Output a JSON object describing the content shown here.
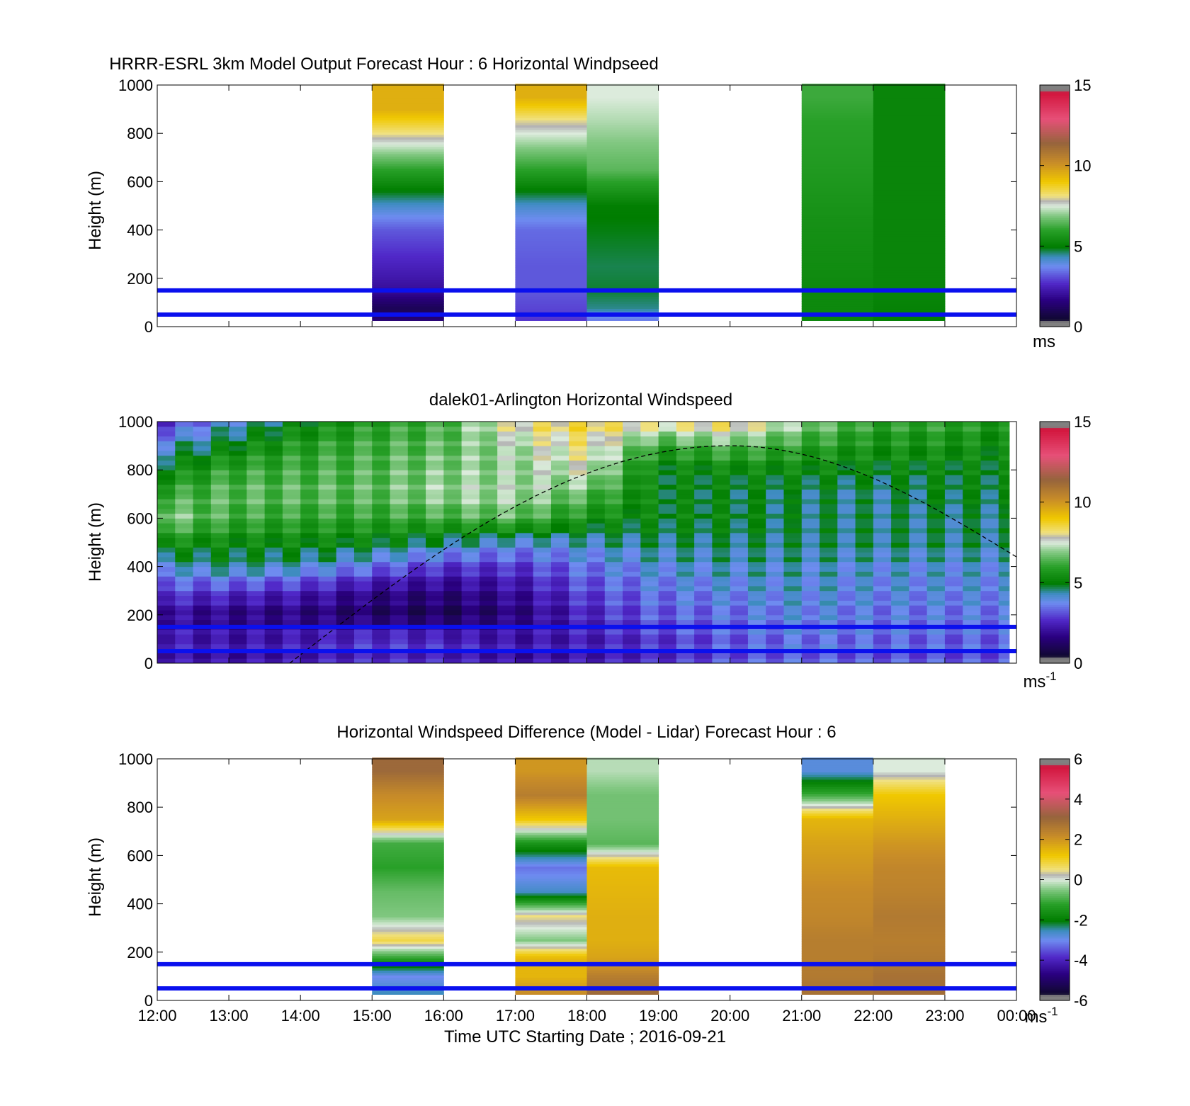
{
  "figure": {
    "xlabel": "Time UTC  Starting Date ; 2016-09-21",
    "xtick_labels": [
      "12:00",
      "13:00",
      "14:00",
      "15:00",
      "16:00",
      "17:00",
      "18:00",
      "19:00",
      "20:00",
      "21:00",
      "22:00",
      "23:00",
      "00:00"
    ]
  },
  "chart_data": [
    {
      "type": "heatmap",
      "title": "HRRR-ESRL 3km Model Output   Forecast Hour : 6 Horizontal Windpseed",
      "ylabel": "Height (m)",
      "x_unit": "hours UTC",
      "xlim": [
        12,
        24
      ],
      "ylim": [
        0,
        1000
      ],
      "yticks": [
        0,
        200,
        400,
        600,
        800,
        1000
      ],
      "colorbar": {
        "ticks": [
          0,
          5,
          10,
          15
        ],
        "range": [
          0,
          15
        ],
        "unit": "ms",
        "unit_sup": ""
      },
      "reference_lines_m": [
        50,
        150
      ],
      "line_color": "#0a10ee",
      "columns": [
        {
          "start": 15,
          "end": 16,
          "heights": [
            25,
            75,
            150,
            250,
            400,
            500,
            650,
            900
          ],
          "values": [
            1.5,
            1.0,
            2.0,
            2.5,
            3.2,
            4.2,
            6.0,
            9.5
          ]
        },
        {
          "start": 17,
          "end": 18,
          "heights": [
            25,
            75,
            150,
            250,
            400,
            500,
            650,
            850,
            950
          ],
          "values": [
            2.8,
            3.0,
            3.2,
            3.2,
            3.4,
            4.2,
            6.0,
            8.0,
            9.5
          ]
        },
        {
          "start": 18,
          "end": 19,
          "heights": [
            25,
            75,
            150,
            250,
            400,
            500,
            650,
            850,
            950
          ],
          "values": [
            3.5,
            4.5,
            4.8,
            4.7,
            4.9,
            5.0,
            6.5,
            7.2,
            7.5
          ]
        },
        {
          "start": 21,
          "end": 22,
          "heights": [
            25,
            75,
            150,
            250,
            400,
            500,
            650,
            850,
            950
          ],
          "values": [
            5.2,
            5.3,
            5.3,
            5.4,
            5.5,
            5.6,
            5.8,
            6.0,
            6.2
          ]
        },
        {
          "start": 22,
          "end": 23,
          "heights": [
            25,
            75,
            150,
            250,
            400,
            500,
            650,
            850,
            950
          ],
          "values": [
            5.0,
            5.1,
            5.2,
            5.2,
            5.2,
            5.2,
            5.2,
            5.2,
            5.2
          ]
        }
      ]
    },
    {
      "type": "heatmap",
      "title": "dalek01-Arlington  Horizontal Windspeed",
      "ylabel": "Height (m)",
      "x_unit": "hours UTC",
      "xlim": [
        12,
        24
      ],
      "ylim": [
        0,
        1000
      ],
      "yticks": [
        0,
        200,
        400,
        600,
        800,
        1000
      ],
      "colorbar": {
        "ticks": [
          0,
          5,
          10,
          15
        ],
        "range": [
          0,
          15
        ],
        "unit": "ms",
        "unit_sup": "-1"
      },
      "reference_lines_m": [
        50,
        150
      ],
      "line_color": "#0a10ee",
      "data_end_hour": 23.9,
      "column_width_h": 0.25,
      "profile_heights": [
        0,
        100,
        200,
        300,
        400,
        500,
        600,
        700,
        800,
        900,
        1000
      ],
      "profile_times": [
        12,
        13,
        14,
        15,
        16,
        17,
        18,
        19,
        20,
        21,
        22,
        23,
        24
      ],
      "profiles": [
        [
          2.2,
          2.5,
          2.0,
          3.0,
          4.0,
          5.5,
          7.0,
          6.0,
          5.0,
          4.0,
          2.5
        ],
        [
          2.0,
          2.2,
          1.6,
          2.8,
          4.5,
          5.2,
          6.2,
          6.5,
          6.0,
          5.0,
          4.0
        ],
        [
          2.2,
          2.4,
          1.5,
          2.5,
          4.2,
          5.2,
          6.0,
          6.5,
          6.2,
          5.8,
          5.0
        ],
        [
          2.5,
          2.8,
          1.2,
          1.8,
          3.5,
          5.0,
          6.0,
          6.5,
          6.4,
          6.2,
          5.8
        ],
        [
          2.4,
          2.6,
          1.0,
          1.6,
          2.8,
          4.5,
          6.2,
          7.0,
          6.8,
          6.5,
          6.2
        ],
        [
          2.0,
          2.2,
          1.5,
          2.0,
          2.8,
          4.0,
          6.5,
          7.2,
          7.0,
          7.2,
          8.0
        ],
        [
          2.2,
          2.4,
          2.5,
          3.0,
          3.5,
          4.2,
          5.5,
          6.5,
          7.5,
          8.0,
          8.5
        ],
        [
          2.5,
          2.8,
          3.2,
          3.5,
          4.0,
          4.5,
          5.0,
          5.0,
          5.0,
          6.0,
          8.0
        ],
        [
          3.0,
          3.2,
          3.4,
          3.8,
          4.2,
          4.5,
          5.0,
          4.8,
          5.2,
          6.5,
          8.5
        ],
        [
          3.2,
          3.5,
          3.8,
          4.0,
          4.2,
          4.5,
          4.6,
          4.6,
          5.2,
          6.0,
          7.0
        ],
        [
          3.0,
          3.4,
          3.5,
          3.8,
          4.0,
          4.5,
          4.5,
          4.4,
          5.0,
          5.5,
          6.0
        ],
        [
          3.0,
          3.3,
          3.5,
          3.8,
          4.0,
          4.5,
          4.5,
          4.8,
          5.0,
          5.5,
          6.0
        ],
        [
          3.0,
          3.3,
          3.5,
          3.8,
          4.0,
          4.5,
          4.5,
          4.8,
          5.0,
          5.2,
          5.5
        ]
      ],
      "boundary_layer_curve": {
        "start_hour": 13.85,
        "peak_hour": 20.0,
        "peak_height": 900,
        "end_hour": 24,
        "end_height": 440
      }
    },
    {
      "type": "heatmap",
      "title": "Horizontal Windspeed Difference (Model - Lidar) Forecast Hour : 6",
      "ylabel": "Height (m)",
      "x_unit": "hours UTC",
      "xlim": [
        12,
        24
      ],
      "ylim": [
        0,
        1000
      ],
      "yticks": [
        0,
        200,
        400,
        600,
        800,
        1000
      ],
      "colorbar": {
        "ticks": [
          -6,
          -4,
          -2,
          0,
          2,
          4,
          6
        ],
        "range": [
          -6,
          6
        ],
        "unit": "ms",
        "unit_sup": "-1"
      },
      "reference_lines_m": [
        50,
        150
      ],
      "line_color": "#0a10ee",
      "columns": [
        {
          "start": 15,
          "end": 16,
          "heights": [
            25,
            100,
            175,
            250,
            350,
            450,
            550,
            650,
            750,
            850,
            950
          ],
          "values": [
            -2.5,
            -3.0,
            -1.2,
            0.8,
            -0.5,
            -0.7,
            -1.2,
            -1.0,
            1.8,
            2.2,
            3.0
          ]
        },
        {
          "start": 17,
          "end": 18,
          "heights": [
            25,
            100,
            175,
            250,
            350,
            450,
            550,
            650,
            750,
            850,
            950
          ],
          "values": [
            2.2,
            1.5,
            1.5,
            -0.5,
            0.5,
            -2.6,
            -3.2,
            -1.5,
            1.2,
            2.5,
            2.0
          ]
        },
        {
          "start": 18,
          "end": 19,
          "heights": [
            25,
            100,
            175,
            250,
            350,
            450,
            550,
            650,
            750,
            850,
            950
          ],
          "values": [
            3.0,
            2.5,
            1.8,
            1.6,
            1.6,
            1.5,
            1.4,
            -0.8,
            -0.6,
            -0.6,
            -0.2
          ]
        },
        {
          "start": 21,
          "end": 22,
          "heights": [
            25,
            100,
            175,
            250,
            350,
            450,
            550,
            650,
            750,
            850,
            950
          ],
          "values": [
            2.8,
            2.6,
            2.5,
            2.5,
            2.3,
            2.2,
            2.0,
            1.8,
            1.5,
            -1.0,
            -2.8
          ]
        },
        {
          "start": 22,
          "end": 23,
          "heights": [
            25,
            100,
            175,
            250,
            350,
            450,
            550,
            650,
            750,
            850,
            950
          ],
          "values": [
            2.9,
            2.8,
            2.6,
            2.5,
            2.6,
            2.4,
            2.3,
            2.0,
            1.6,
            1.2,
            0.0
          ]
        }
      ]
    }
  ]
}
